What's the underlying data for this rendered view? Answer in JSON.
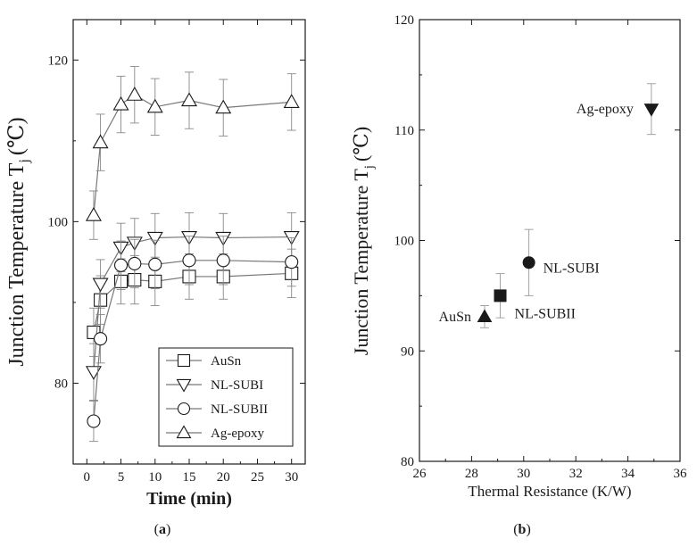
{
  "chart_data": [
    {
      "type": "line",
      "panel_label": "(a)",
      "caption_open": "(",
      "caption_letter": "a",
      "caption_close": ")",
      "xlabel": "Time (min)",
      "ylabel_main": "Junction Temperature T",
      "ylabel_sub": "j",
      "ylabel_unit": "(℃)",
      "xlim": [
        -2,
        32
      ],
      "ylim": [
        70,
        125
      ],
      "xticks": [
        0,
        5,
        10,
        15,
        20,
        25,
        30
      ],
      "yticks": [
        80,
        100,
        120
      ],
      "legend_position": "bottom-right",
      "x": [
        1,
        2,
        5,
        7,
        10,
        15,
        20,
        30
      ],
      "series": [
        {
          "name": "AuSn",
          "marker": "square",
          "values": [
            86.3,
            90.3,
            92.6,
            92.8,
            92.6,
            93.2,
            93.2,
            93.6
          ],
          "error": [
            3,
            3,
            2.8,
            3,
            3,
            2.8,
            2.8,
            3
          ]
        },
        {
          "name": "NL-SUBI",
          "marker": "triangle-down",
          "values": [
            81.4,
            92.3,
            96.8,
            97.4,
            98.0,
            98.1,
            98.0,
            98.1
          ],
          "error": [
            3.5,
            3,
            3,
            3,
            3,
            3,
            3,
            3
          ]
        },
        {
          "name": "NL-SUBII",
          "marker": "circle",
          "values": [
            75.3,
            85.5,
            94.6,
            94.8,
            94.7,
            95.2,
            95.2,
            95.0
          ],
          "error": [
            2.5,
            3,
            3,
            3,
            3,
            3,
            3,
            3
          ]
        },
        {
          "name": "Ag-epoxy",
          "marker": "triangle-up",
          "values": [
            100.8,
            109.8,
            114.5,
            115.7,
            114.2,
            115.0,
            114.1,
            114.8
          ],
          "error": [
            3,
            3.5,
            3.5,
            3.5,
            3.5,
            3.5,
            3.5,
            3.5
          ]
        }
      ]
    },
    {
      "type": "scatter",
      "panel_label": "(b)",
      "caption_open": "(",
      "caption_letter": "b",
      "caption_close": ")",
      "xlabel": "Thermal Resistance (K/W)",
      "ylabel_main": "Junction Temperature T",
      "ylabel_sub": "j",
      "ylabel_unit": "(℃)",
      "xlim": [
        26,
        36
      ],
      "ylim": [
        80,
        120
      ],
      "xticks": [
        26,
        28,
        30,
        32,
        34,
        36
      ],
      "yticks": [
        80,
        90,
        100,
        110,
        120
      ],
      "points": [
        {
          "label": "AuSn",
          "x": 28.5,
          "y": 93.1,
          "error": 1.0,
          "marker": "triangle-up"
        },
        {
          "label": "NL-SUBII",
          "x": 29.1,
          "y": 95.0,
          "error": 2.0,
          "marker": "square"
        },
        {
          "label": "NL-SUBI",
          "x": 30.2,
          "y": 98.0,
          "error": 3.0,
          "marker": "circle"
        },
        {
          "label": "Ag-epoxy",
          "x": 34.9,
          "y": 111.9,
          "error": 2.3,
          "marker": "triangle-down"
        }
      ]
    }
  ]
}
